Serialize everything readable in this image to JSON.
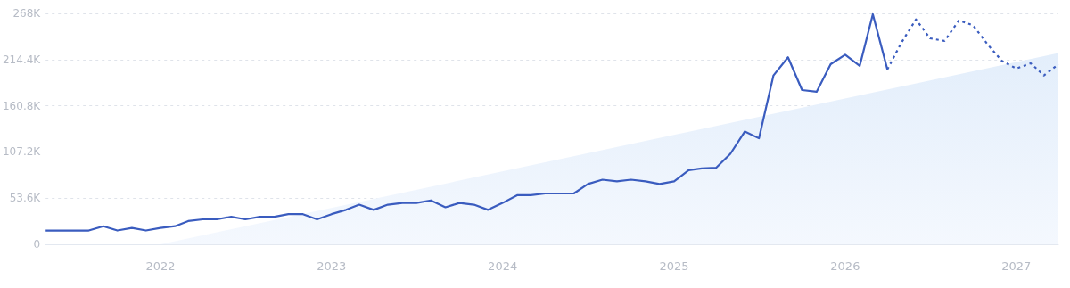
{
  "chart_data": {
    "type": "line",
    "ylim": [
      0,
      268000
    ],
    "yticks": [
      {
        "value": 0,
        "label": "0"
      },
      {
        "value": 53600,
        "label": "53.6K"
      },
      {
        "value": 107200,
        "label": "107.2K"
      },
      {
        "value": 160800,
        "label": "160.8K"
      },
      {
        "value": 214400,
        "label": "214.4K"
      },
      {
        "value": 268000,
        "label": "268K"
      }
    ],
    "xlim": [
      "2021-05",
      "2027-04"
    ],
    "xticks": [
      {
        "value": "2022",
        "label": "2022"
      },
      {
        "value": "2023",
        "label": "2023"
      },
      {
        "value": "2024",
        "label": "2024"
      },
      {
        "value": "2025",
        "label": "2025"
      },
      {
        "value": "2026",
        "label": "2026"
      },
      {
        "value": "2027",
        "label": "2027"
      }
    ],
    "grid": "y",
    "marker": "none",
    "series": [
      {
        "type": "area",
        "color": "#e3eefb",
        "x": [
          "2022-01",
          "2027-04"
        ],
        "values": [
          0,
          222000
        ]
      },
      {
        "color": "#3a5cbf",
        "line_style": "solid",
        "x": [
          "2021-05",
          "2021-06",
          "2021-07",
          "2021-08",
          "2021-09",
          "2021-10",
          "2021-11",
          "2021-12",
          "2022-01",
          "2022-02",
          "2022-03",
          "2022-04",
          "2022-05",
          "2022-06",
          "2022-07",
          "2022-08",
          "2022-09",
          "2022-10",
          "2022-11",
          "2022-12",
          "2023-01",
          "2023-02",
          "2023-03",
          "2023-04",
          "2023-05",
          "2023-06",
          "2023-07",
          "2023-08",
          "2023-09",
          "2023-10",
          "2023-11",
          "2023-12",
          "2024-01",
          "2024-02",
          "2024-03",
          "2024-04",
          "2024-05",
          "2024-06",
          "2024-07",
          "2024-08",
          "2024-09",
          "2024-10",
          "2024-11",
          "2024-12",
          "2025-01",
          "2025-02",
          "2025-03",
          "2025-04",
          "2025-05",
          "2025-06",
          "2025-07",
          "2025-08",
          "2025-09",
          "2025-10",
          "2025-11",
          "2025-12",
          "2026-01",
          "2026-02",
          "2026-03",
          "2026-04"
        ],
        "values": [
          16000,
          16000,
          16000,
          16000,
          21000,
          16000,
          19000,
          16000,
          19000,
          21000,
          27000,
          29000,
          29000,
          32000,
          29000,
          32000,
          32000,
          35000,
          35000,
          29000,
          35000,
          40000,
          46000,
          40000,
          46000,
          48000,
          48000,
          51000,
          43000,
          48000,
          46000,
          40000,
          48000,
          57000,
          57000,
          59000,
          59000,
          59000,
          70000,
          75000,
          73000,
          75000,
          73000,
          70000,
          73000,
          86000,
          88000,
          89000,
          105000,
          131000,
          123000,
          196000,
          217000,
          179000,
          177000,
          209000,
          220000,
          207000,
          267000,
          203000
        ]
      },
      {
        "color": "#3a5cbf",
        "line_style": "dotted",
        "x": [
          "2026-04",
          "2026-05",
          "2026-06",
          "2026-07",
          "2026-08",
          "2026-09",
          "2026-10",
          "2026-11",
          "2026-12",
          "2027-01",
          "2027-02",
          "2027-03",
          "2027-04"
        ],
        "values": [
          203000,
          234000,
          261000,
          239000,
          236000,
          260000,
          254000,
          232000,
          213000,
          204000,
          210000,
          196000,
          209000
        ]
      }
    ]
  }
}
